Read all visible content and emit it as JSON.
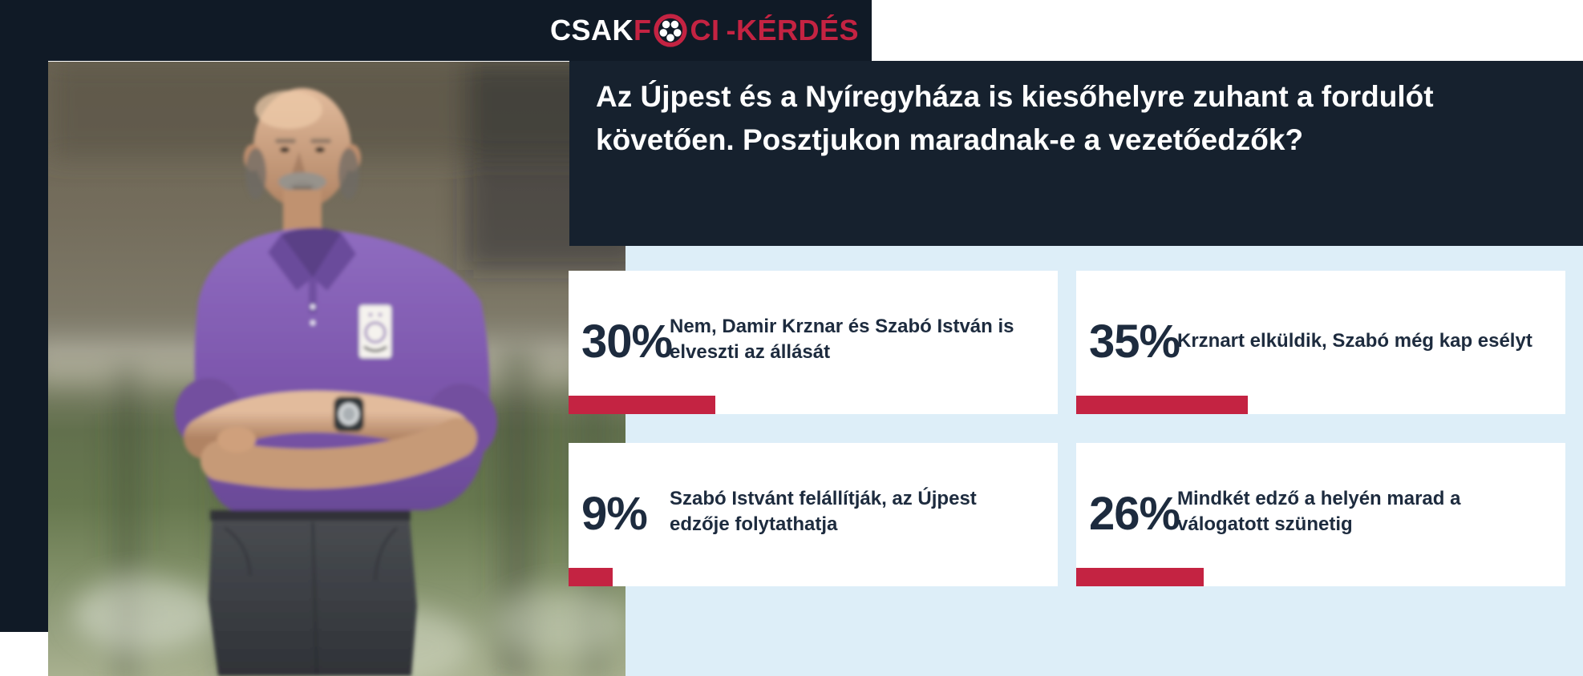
{
  "brand": {
    "logo": {
      "csak": "CSAK",
      "f": "F",
      "ball_icon": "soccer-ball-icon",
      "ci": "CI",
      "suffix": "-KÉRDÉS"
    },
    "colors": {
      "accent_red": "#c42342",
      "header_navy": "#101a26",
      "panel_navy": "#16212e",
      "light_blue": "#ddeef8",
      "text_navy": "#1d2b3e"
    }
  },
  "question": {
    "text": "Az Újpest és a Nyíregyháza is kiesőhelyre zuhant a fordulót követően. Posztjukon maradnak-e a vezetőedzők?"
  },
  "photo": {
    "alt": "Vezetőedző lila galléros pólóban, karba tett kézzel a pálya szélén"
  },
  "poll": {
    "options": [
      {
        "percent": "30%",
        "value": 30,
        "label": "Nem, Damir Krznar és Szabó István is elveszti az állását"
      },
      {
        "percent": "35%",
        "value": 35,
        "label": "Krznart elküldik, Szabó még kap esélyt"
      },
      {
        "percent": "9%",
        "value": 9,
        "label": "Szabó Istvánt felállítják, az Újpest edzője folytathatja"
      },
      {
        "percent": "26%",
        "value": 26,
        "label": "Mindkét edző a helyén marad a válogatott szünetig"
      }
    ]
  }
}
